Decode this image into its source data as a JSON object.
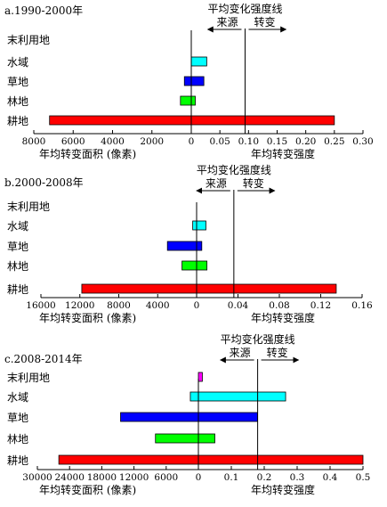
{
  "chart_data": [
    {
      "type": "bar",
      "title": "a.1990-2000年",
      "categories": [
        "末利用地",
        "水域",
        "草地",
        "林地",
        "耕地"
      ],
      "left_axis": {
        "label": "年均转变面积 (像素)",
        "range": [
          8000,
          0
        ],
        "ticks": [
          "8000",
          "6000",
          "4000",
          "2000",
          "0"
        ]
      },
      "right_axis": {
        "label": "年均转变强度",
        "range": [
          0,
          0.3
        ],
        "ticks": [
          "0",
          "0.05",
          "0.10",
          "0.15",
          "0.20",
          "0.25",
          "0.30"
        ]
      },
      "series": [
        {
          "values": [
            0,
            0,
            350,
            550,
            7200
          ]
        },
        {
          "values": [
            0,
            0.027,
            0.022,
            0.007,
            0.25
          ]
        }
      ],
      "avg_intensity": 0.094,
      "annotation": {
        "line": "平均变化强度线",
        "source": "来源",
        "transition": "转变"
      },
      "colors": [
        "#ff00ff",
        "#00ffff",
        "#0000ff",
        "#00ff00",
        "#ff0000"
      ]
    },
    {
      "type": "bar",
      "title": "b.2000-2008年",
      "categories": [
        "末利用地",
        "水域",
        "草地",
        "林地",
        "耕地"
      ],
      "left_axis": {
        "label": "年均转变面积 (像素)",
        "range": [
          16000,
          0
        ],
        "ticks": [
          "16000",
          "12000",
          "8000",
          "4000",
          "0"
        ]
      },
      "right_axis": {
        "label": "年均转变强度",
        "range": [
          0,
          0.16
        ],
        "ticks": [
          "0",
          "0.04",
          "0.08",
          "0.12",
          "0.16"
        ]
      },
      "series": [
        {
          "values": [
            0,
            400,
            3000,
            1500,
            11800
          ]
        },
        {
          "values": [
            0,
            0.009,
            0.005,
            0.01,
            0.135
          ]
        }
      ],
      "avg_intensity": 0.036,
      "annotation": {
        "line": "平均变化强度线",
        "source": "来源",
        "transition": "转变"
      },
      "colors": [
        "#ff00ff",
        "#00ffff",
        "#0000ff",
        "#00ff00",
        "#ff0000"
      ]
    },
    {
      "type": "bar",
      "title": "c.2008-2014年",
      "categories": [
        "末利用地",
        "水域",
        "草地",
        "林地",
        "耕地"
      ],
      "left_axis": {
        "label": "年均转变面积 (像素)",
        "range": [
          30000,
          0
        ],
        "ticks": [
          "30000",
          "24000",
          "18000",
          "12000",
          "6000",
          "0"
        ]
      },
      "right_axis": {
        "label": "年均转变强度",
        "range": [
          0,
          0.5
        ],
        "ticks": [
          "0",
          "0.1",
          "0.2",
          "0.3",
          "0.4",
          "0.5"
        ]
      },
      "series": [
        {
          "values": [
            0,
            1500,
            14500,
            8000,
            26000
          ]
        },
        {
          "values": [
            0.012,
            0.265,
            0.18,
            0.05,
            0.5
          ]
        }
      ],
      "avg_intensity": 0.18,
      "annotation": {
        "line": "平均变化强度线",
        "source": "来源",
        "transition": "转变"
      },
      "colors": [
        "#ff00ff",
        "#00ffff",
        "#0000ff",
        "#00ff00",
        "#ff0000"
      ]
    }
  ]
}
